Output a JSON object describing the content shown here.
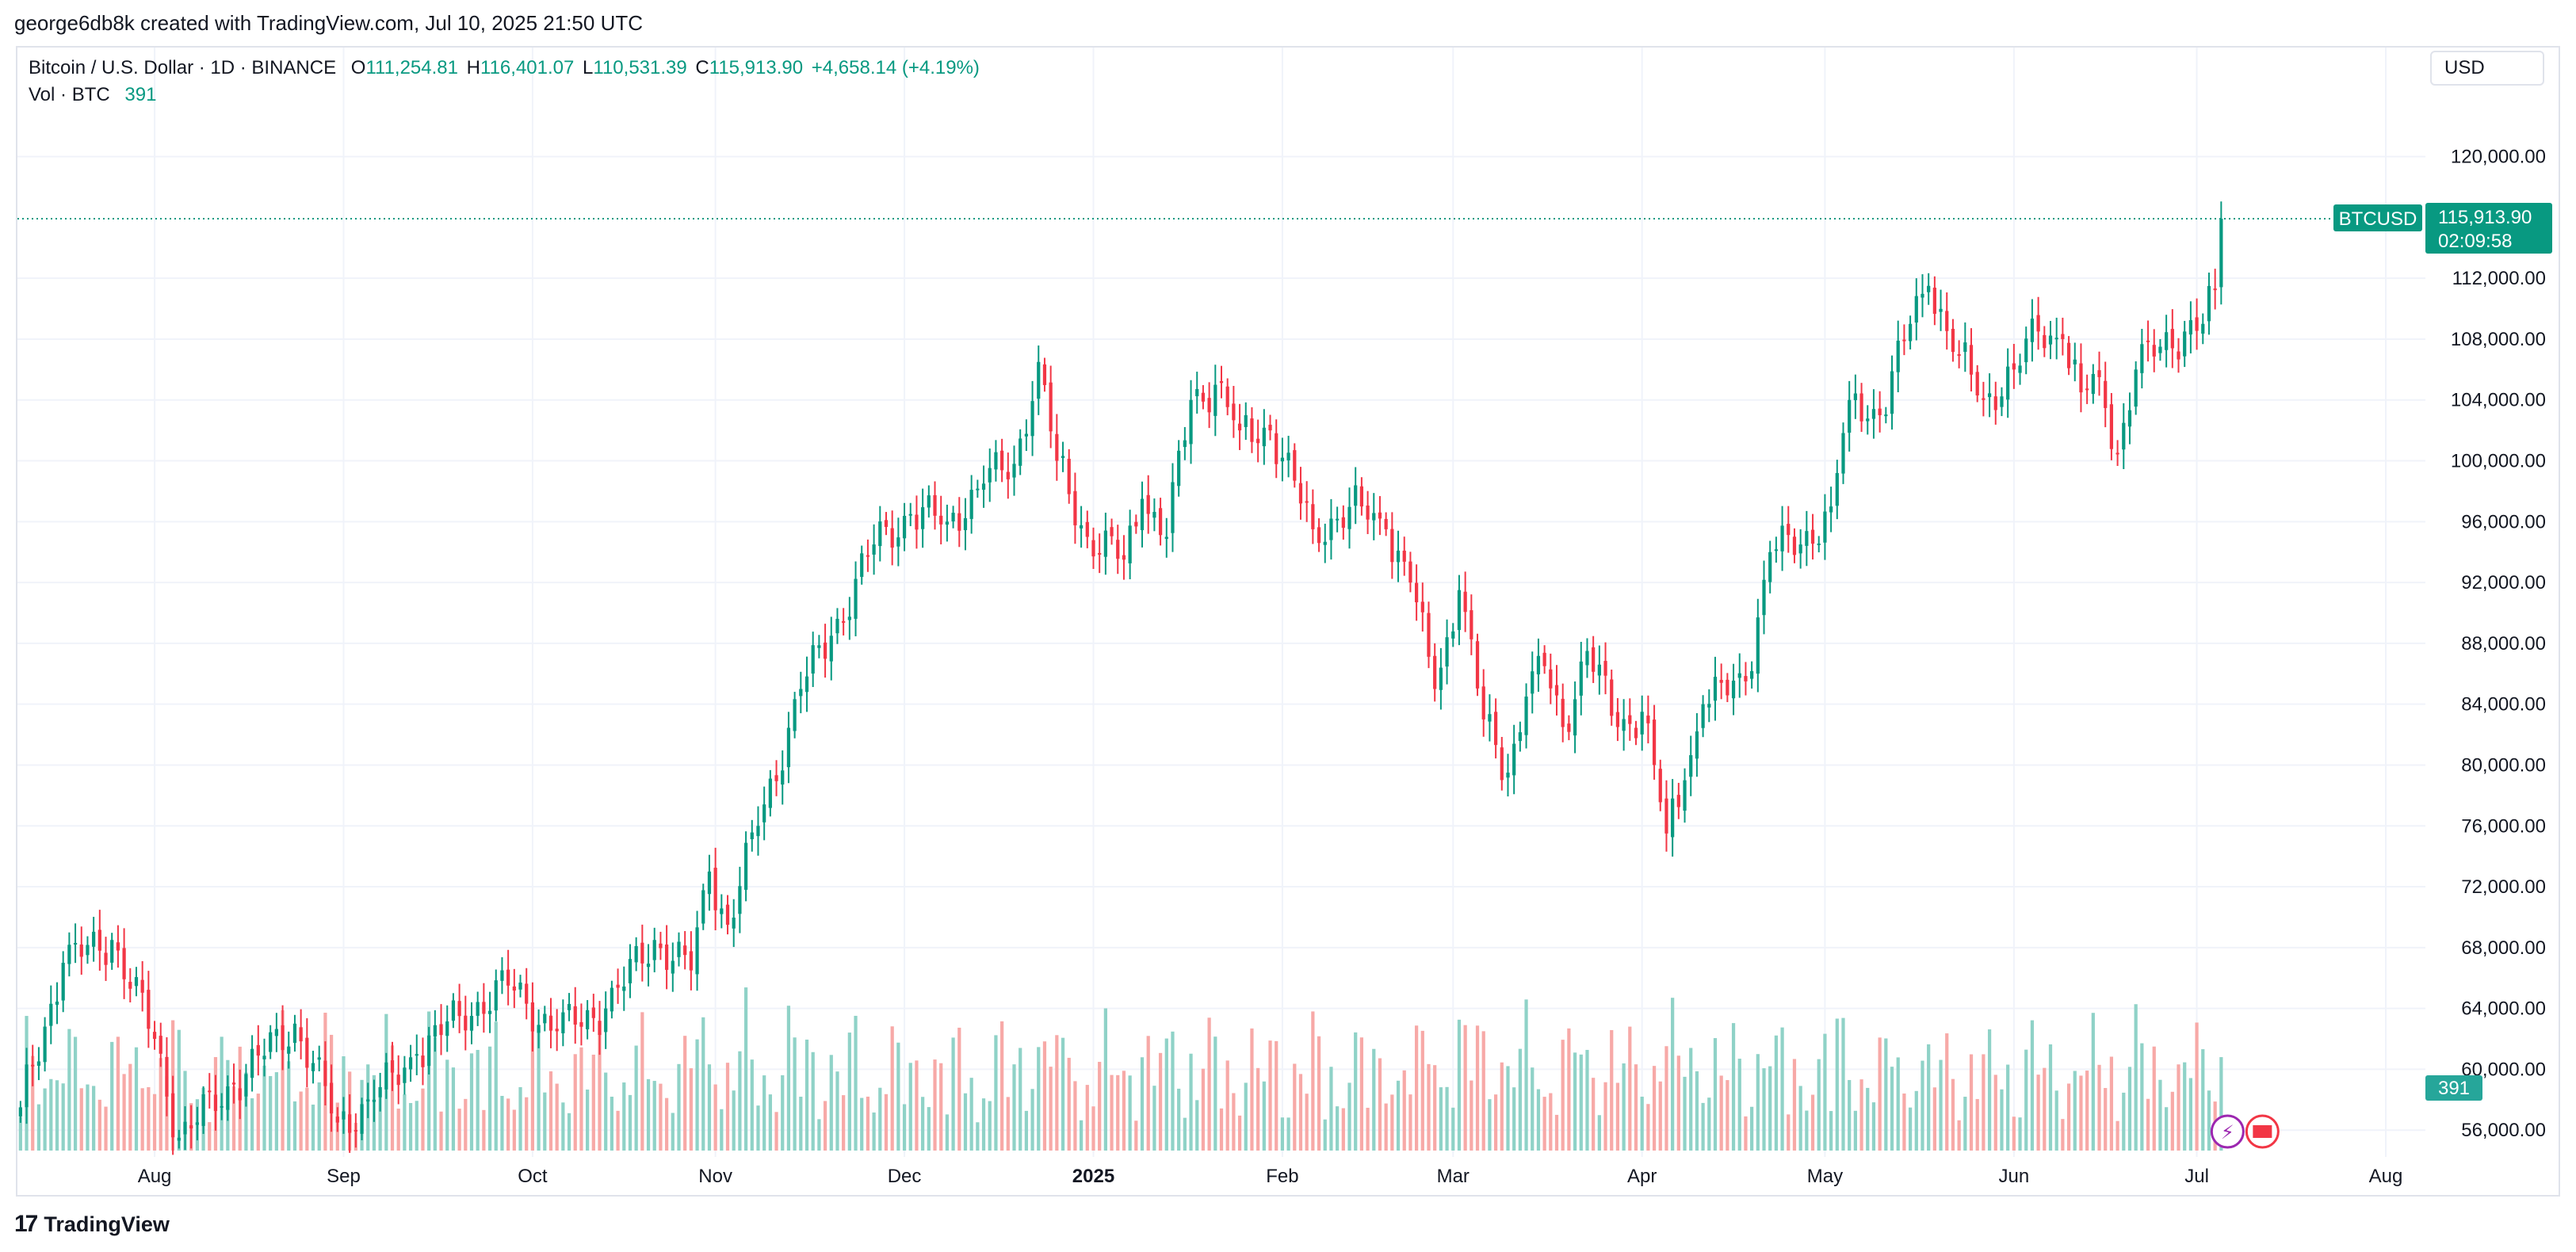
{
  "header": {
    "credit": "george6db8k created with TradingView.com, Jul 10, 2025 21:50 UTC"
  },
  "legend": {
    "symbol": "Bitcoin / U.S. Dollar · 1D · BINANCE",
    "open_label": "O",
    "open": "111,254.81",
    "high_label": "H",
    "high": "116,401.07",
    "low_label": "L",
    "low": "110,531.39",
    "close_label": "C",
    "close": "115,913.90",
    "change": "+4,658.14 (+4.19%)",
    "vol_label": "Vol · BTC",
    "vol_value": "391"
  },
  "toolbar": {
    "currency": "USD"
  },
  "footer": {
    "brand": "TradingView"
  },
  "colors": {
    "up": "#089981",
    "down": "#f23645",
    "vol_up": "#8fd2c7",
    "vol_down": "#f7a9a7",
    "grid": "#f0f3fa",
    "axis_text": "#131722"
  },
  "chart_data": {
    "type": "candlestick",
    "symbol_badge": "BTCUSD",
    "last_price": "115,913.90",
    "countdown": "02:09:58",
    "volume_badge": "391",
    "y_axis": {
      "range": [
        54500,
        123000
      ],
      "ticks": [
        "120,000.00",
        "112,000.00",
        "108,000.00",
        "104,000.00",
        "100,000.00",
        "96,000.00",
        "92,000.00",
        "88,000.00",
        "84,000.00",
        "80,000.00",
        "76,000.00",
        "72,000.00",
        "68,000.00",
        "64,000.00",
        "60,000.00",
        "56,000.00"
      ],
      "tick_values": [
        120000,
        112000,
        108000,
        104000,
        100000,
        96000,
        92000,
        88000,
        84000,
        80000,
        76000,
        72000,
        68000,
        64000,
        60000,
        56000
      ]
    },
    "x_axis": {
      "labels": [
        "Aug",
        "Sep",
        "Oct",
        "Nov",
        "Dec",
        "2025",
        "Feb",
        "Mar",
        "Apr",
        "May",
        "Jun",
        "Jul",
        "Aug"
      ],
      "bold": [
        false,
        false,
        false,
        false,
        false,
        true,
        false,
        false,
        false,
        false,
        false,
        false,
        false
      ],
      "label_day_index": [
        22,
        53,
        84,
        114,
        145,
        176,
        207,
        235,
        266,
        296,
        327,
        357,
        388
      ]
    },
    "start_date": "2024-07-10",
    "end_date": "2025-07-10",
    "anchors": [
      [
        0,
        57500
      ],
      [
        7,
        67000
      ],
      [
        15,
        68500
      ],
      [
        22,
        62000
      ],
      [
        26,
        55500
      ],
      [
        35,
        59000
      ],
      [
        45,
        63000
      ],
      [
        52,
        56500
      ],
      [
        58,
        58000
      ],
      [
        65,
        61000
      ],
      [
        72,
        63500
      ],
      [
        80,
        65500
      ],
      [
        88,
        62500
      ],
      [
        96,
        64000
      ],
      [
        104,
        68500
      ],
      [
        110,
        66500
      ],
      [
        113,
        73000
      ],
      [
        116,
        69500
      ],
      [
        121,
        76000
      ],
      [
        128,
        85000
      ],
      [
        133,
        88500
      ],
      [
        140,
        94500
      ],
      [
        146,
        96500
      ],
      [
        152,
        96000
      ],
      [
        158,
        98500
      ],
      [
        163,
        99800
      ],
      [
        167,
        106500
      ],
      [
        170,
        100000
      ],
      [
        175,
        95000
      ],
      [
        181,
        93500
      ],
      [
        184,
        97500
      ],
      [
        188,
        95000
      ],
      [
        192,
        104000
      ],
      [
        196,
        105000
      ],
      [
        200,
        102000
      ],
      [
        205,
        102000
      ],
      [
        212,
        95500
      ],
      [
        220,
        97000
      ],
      [
        224,
        95500
      ],
      [
        228,
        92000
      ],
      [
        232,
        85000
      ],
      [
        236,
        91500
      ],
      [
        240,
        83000
      ],
      [
        244,
        79500
      ],
      [
        247,
        84500
      ],
      [
        250,
        86500
      ],
      [
        253,
        82500
      ],
      [
        257,
        87500
      ],
      [
        262,
        82500
      ],
      [
        266,
        83500
      ],
      [
        268,
        80000
      ],
      [
        270,
        75500
      ],
      [
        273,
        79000
      ],
      [
        276,
        84000
      ],
      [
        283,
        85500
      ],
      [
        287,
        94000
      ],
      [
        292,
        94500
      ],
      [
        297,
        97000
      ],
      [
        300,
        104000
      ],
      [
        305,
        103000
      ],
      [
        310,
        109000
      ],
      [
        313,
        111500
      ],
      [
        318,
        107000
      ],
      [
        322,
        104000
      ],
      [
        327,
        106000
      ],
      [
        331,
        108500
      ],
      [
        335,
        108000
      ],
      [
        338,
        104500
      ],
      [
        341,
        105500
      ],
      [
        344,
        100500
      ],
      [
        347,
        106000
      ],
      [
        351,
        107500
      ],
      [
        355,
        108500
      ],
      [
        358,
        109000
      ],
      [
        360,
        111254.81
      ],
      [
        361,
        115913.9
      ]
    ],
    "grid": true,
    "legend_position": "top-left"
  }
}
